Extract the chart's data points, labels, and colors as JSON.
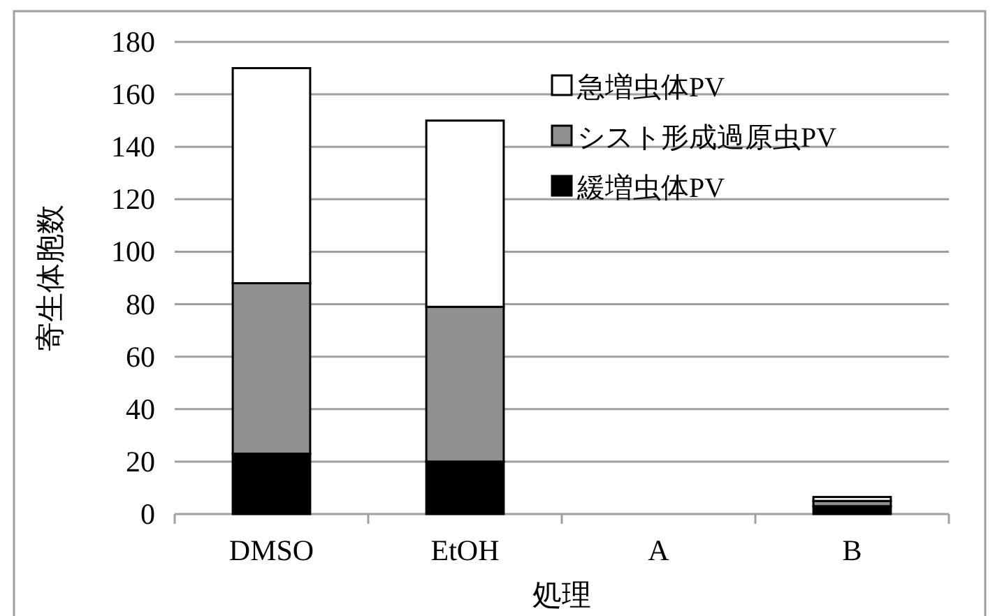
{
  "chart_data": {
    "type": "bar",
    "stacked": true,
    "xlabel": "処理",
    "ylabel": "寄生体胞数",
    "categories": [
      "DMSO",
      "EtOH",
      "A",
      "B"
    ],
    "series": [
      {
        "name": "緩増虫体PV",
        "color": "#000000",
        "values": [
          23,
          20,
          0,
          3
        ]
      },
      {
        "name": "シスト形成過原虫PV",
        "color": "#909090",
        "values": [
          65,
          59,
          0,
          2
        ]
      },
      {
        "name": "急増虫体PV",
        "color": "#ffffff",
        "values": [
          82,
          71,
          0,
          1.5
        ]
      }
    ],
    "ylim": [
      0,
      180
    ],
    "yticks": [
      0,
      20,
      40,
      60,
      80,
      100,
      120,
      140,
      160,
      180
    ],
    "grid": "y",
    "legend": "top right"
  }
}
